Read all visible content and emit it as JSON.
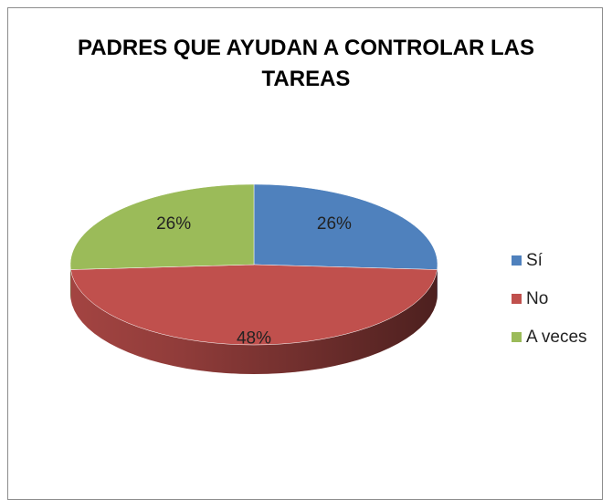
{
  "chart_data": {
    "type": "pie3d",
    "title": "PADRES QUE AYUDAN A CONTROLAR LAS TAREAS",
    "categories": [
      "Sí",
      "No",
      "A veces"
    ],
    "values": [
      26,
      48,
      26
    ],
    "value_labels": [
      "26%",
      "48%",
      "26%"
    ],
    "colors": [
      "#4f81bd",
      "#c0504d",
      "#9bbb59"
    ],
    "legend": "right"
  }
}
